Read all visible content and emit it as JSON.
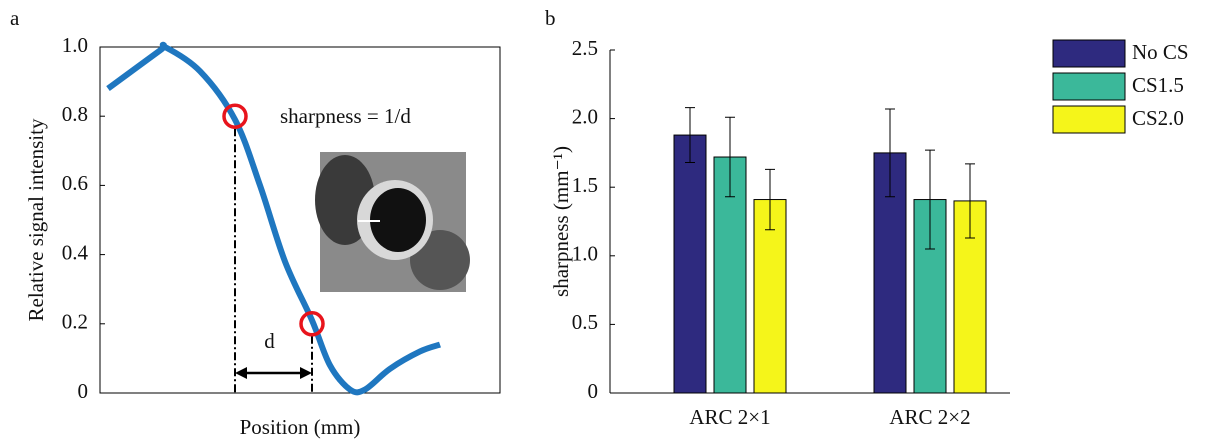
{
  "chart_data": [
    {
      "type": "line",
      "panel_label": "a",
      "xlabel": "Position (mm)",
      "ylabel": "Relative signal intensity",
      "x": [
        0.4,
        3,
        3.25,
        5,
        6.75,
        8,
        9.25,
        10.6,
        11.5,
        12.5,
        13.25,
        14.5,
        16,
        17
      ],
      "series": [
        {
          "color": "#1f77c0",
          "values": [
            0.88,
            0.99,
            1.0,
            0.93,
            0.79,
            0.6,
            0.38,
            0.21,
            0.08,
            0.01,
            0.01,
            0.07,
            0.12,
            0.14
          ]
        }
      ],
      "markers": {
        "x": [
          6.75,
          10.6
        ],
        "values": [
          0.8,
          0.2
        ],
        "color": "#e8141c"
      },
      "annotation": "sharpness = 1/d",
      "distance_label": "d",
      "xlim": [
        0,
        20
      ],
      "ylim": [
        0,
        1
      ],
      "yticks": [
        0,
        0.2,
        0.4,
        0.6,
        0.8,
        {
          "value": 1,
          "label": "1.0"
        }
      ]
    },
    {
      "type": "bar",
      "panel_label": "b",
      "ylabel": "sharpness (mm⁻¹)",
      "categories": [
        "ARC 2×1",
        "ARC 2×2"
      ],
      "series": [
        {
          "name": "No CS",
          "color": "#2e2a7f",
          "values": [
            1.88,
            1.75
          ],
          "errors": [
            0.2,
            0.32
          ]
        },
        {
          "name": "CS1.5",
          "color": "#3bb89a",
          "values": [
            1.72,
            1.41
          ],
          "errors": [
            0.29,
            0.36
          ]
        },
        {
          "name": "CS2.0",
          "color": "#f5f51a",
          "values": [
            1.41,
            1.4
          ],
          "errors": [
            0.22,
            0.27
          ]
        }
      ],
      "ylim": [
        0,
        2.5
      ],
      "yticks": [
        0,
        0.5,
        {
          "value": 1,
          "label": "1.0"
        },
        1.5,
        {
          "value": 2,
          "label": "2.0"
        },
        2.5
      ],
      "legend": "right"
    }
  ]
}
